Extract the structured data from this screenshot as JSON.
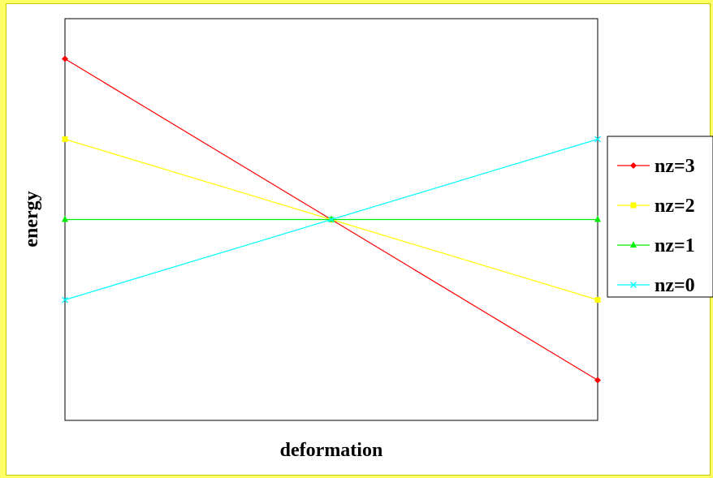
{
  "chart_data": {
    "type": "line",
    "title": "",
    "xlabel": "deformation",
    "ylabel": "energy",
    "x": [
      -1,
      0,
      1
    ],
    "xlim": [
      -1,
      1
    ],
    "ylim": [
      -2.5,
      2.5
    ],
    "grid": false,
    "legend_position": "right",
    "series": [
      {
        "name": "nz=3",
        "values": [
          2,
          0,
          -2
        ],
        "color": "#ff0000",
        "marker": "diamond"
      },
      {
        "name": "nz=2",
        "values": [
          1,
          0,
          -1
        ],
        "color": "#ffff00",
        "marker": "square"
      },
      {
        "name": "nz=1",
        "values": [
          0,
          0,
          0
        ],
        "color": "#00ee00",
        "marker": "triangle"
      },
      {
        "name": "nz=0",
        "values": [
          -1,
          0,
          1
        ],
        "color": "#00ffff",
        "marker": "x"
      }
    ]
  }
}
